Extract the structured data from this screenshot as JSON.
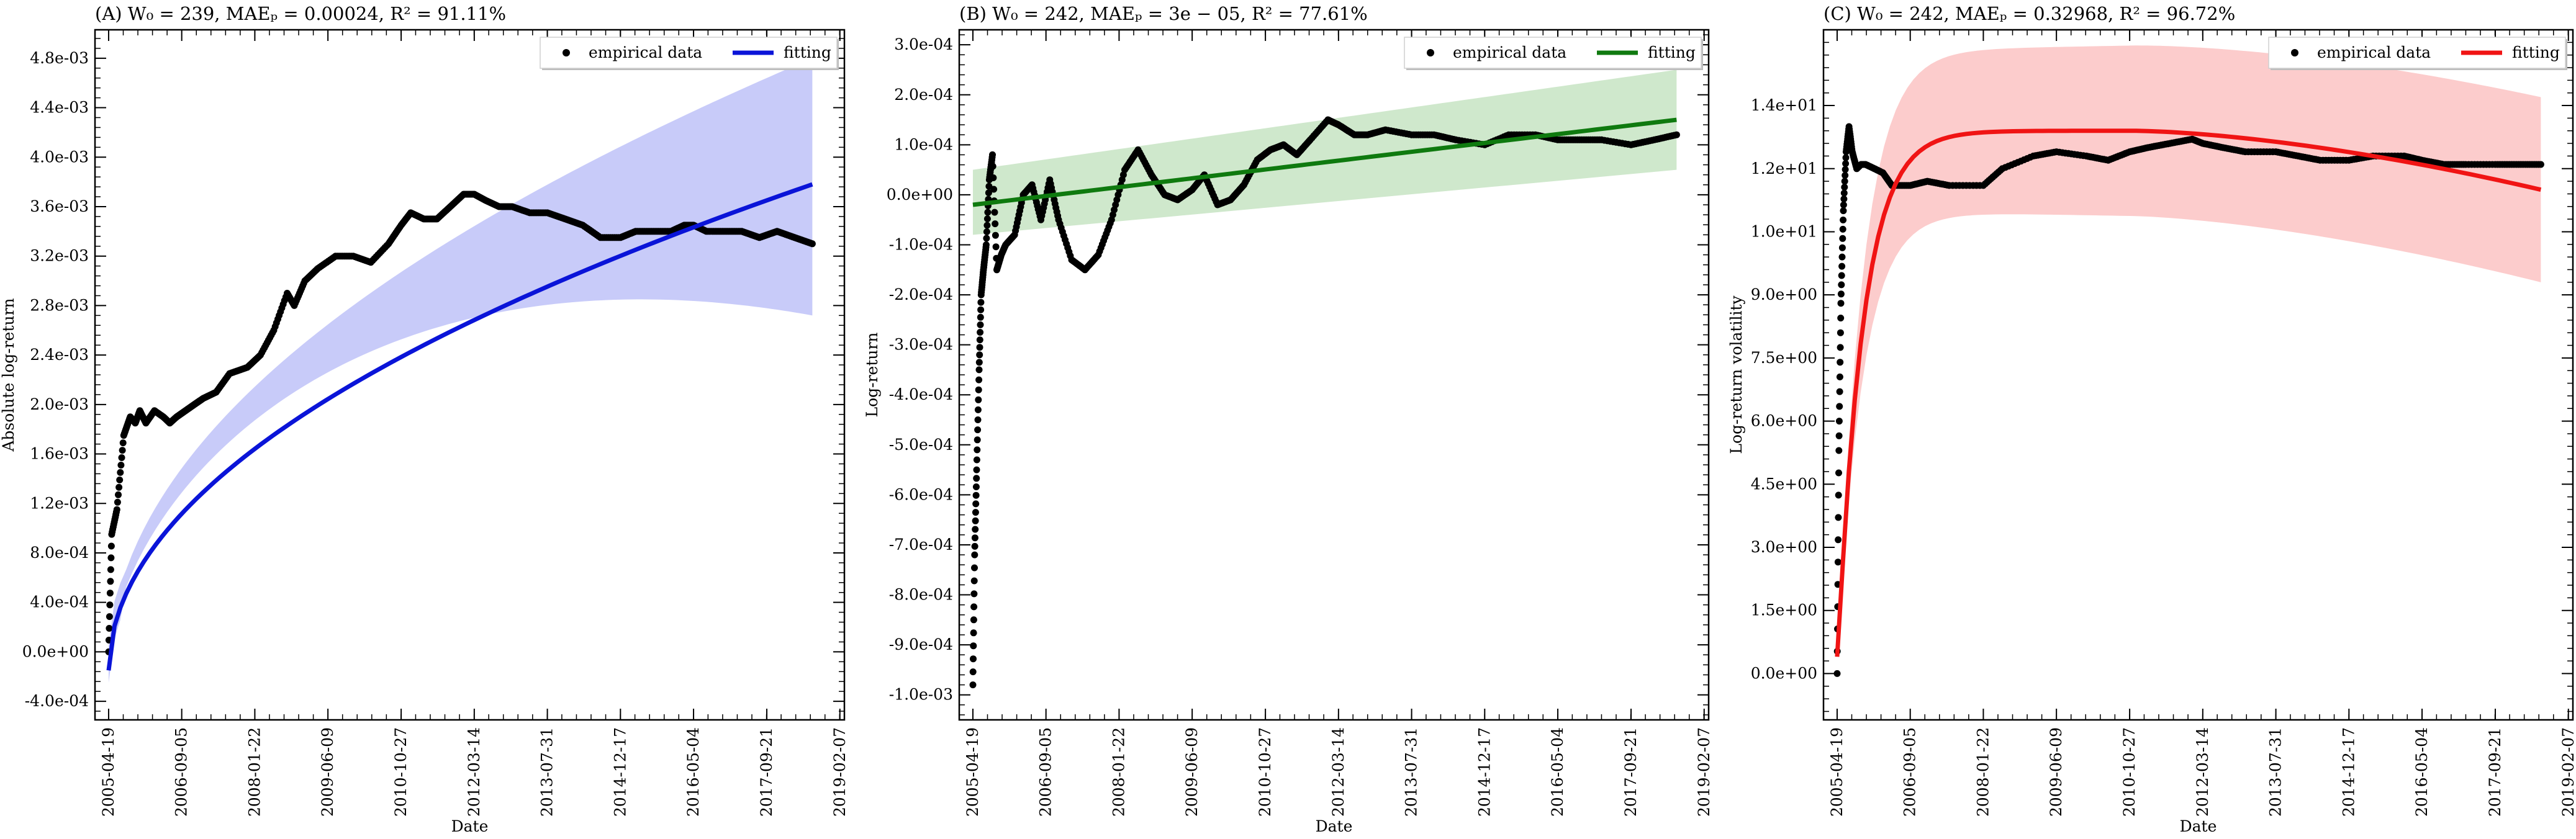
{
  "chart_data": [
    {
      "panel": "A",
      "type": "scatter",
      "title": "(A) W₀ = 239, MAEₚ = 0.00024, R² = 91.11%",
      "xlabel": "Date",
      "ylabel": "Absolute log-return",
      "x_ticks": [
        "2005-04-19",
        "2006-09-05",
        "2008-01-22",
        "2009-06-09",
        "2010-10-27",
        "2012-03-14",
        "2013-07-31",
        "2014-12-17",
        "2016-05-04",
        "2017-09-21",
        "2019-02-07"
      ],
      "y_ticks": [
        "-4.0e-04",
        "0.0e+00",
        "4.0e-04",
        "8.0e-04",
        "1.2e-03",
        "1.6e-03",
        "2.0e-03",
        "2.4e-03",
        "2.8e-03",
        "3.2e-03",
        "3.6e-03",
        "4.0e-03",
        "4.4e-03",
        "4.8e-03"
      ],
      "y_tick_values": [
        -0.0004,
        0,
        0.0004,
        0.0008,
        0.0012,
        0.0016,
        0.002,
        0.0024,
        0.0028,
        0.0032,
        0.0036,
        0.004,
        0.0044,
        0.0048
      ],
      "xlim": [
        "2005-01-15",
        "2019-03-10"
      ],
      "ylim": [
        -0.00055,
        0.00503
      ],
      "legend": {
        "position": "top-right",
        "entries": [
          "empirical data",
          "fitting"
        ]
      },
      "colors": {
        "fit": "#0a14d8",
        "band": "#c8cbf9",
        "points": "#000000"
      },
      "empirical": {
        "x": [
          "2005-04-19",
          "2005-05-10",
          "2005-06-15",
          "2005-08-01",
          "2005-09-15",
          "2005-10-20",
          "2005-11-20",
          "2006-01-01",
          "2006-03-01",
          "2006-05-01",
          "2006-06-15",
          "2006-08-01",
          "2006-10-01",
          "2006-12-01",
          "2007-02-01",
          "2007-05-01",
          "2007-08-01",
          "2007-12-01",
          "2008-03-01",
          "2008-06-01",
          "2008-09-01",
          "2008-10-20",
          "2009-01-01",
          "2009-04-01",
          "2009-08-01",
          "2009-12-01",
          "2010-04-01",
          "2010-08-01",
          "2010-10-27",
          "2011-01-01",
          "2011-04-01",
          "2011-07-01",
          "2011-10-01",
          "2012-01-01",
          "2012-03-14",
          "2012-06-01",
          "2012-09-01",
          "2012-12-01",
          "2013-04-01",
          "2013-07-31",
          "2013-12-01",
          "2014-04-01",
          "2014-08-01",
          "2014-12-17",
          "2015-04-01",
          "2015-08-01",
          "2015-12-01",
          "2016-03-01",
          "2016-05-04",
          "2016-08-01",
          "2016-12-01",
          "2017-04-01",
          "2017-08-01",
          "2017-12-01",
          "2018-04-01",
          "2018-08-01"
        ],
        "y": [
          0.0,
          0.00095,
          0.00115,
          0.00175,
          0.0019,
          0.00185,
          0.00195,
          0.00185,
          0.00195,
          0.0019,
          0.00185,
          0.0019,
          0.00195,
          0.002,
          0.00205,
          0.0021,
          0.00225,
          0.0023,
          0.0024,
          0.0026,
          0.0029,
          0.0028,
          0.003,
          0.0031,
          0.0032,
          0.0032,
          0.00315,
          0.0033,
          0.00345,
          0.00355,
          0.0035,
          0.0035,
          0.0036,
          0.0037,
          0.0037,
          0.00365,
          0.0036,
          0.0036,
          0.00355,
          0.00355,
          0.0035,
          0.00345,
          0.00335,
          0.00335,
          0.0034,
          0.0034,
          0.0034,
          0.00345,
          0.00345,
          0.0034,
          0.0034,
          0.0034,
          0.00335,
          0.0034,
          0.00335,
          0.0033
        ]
      },
      "fit": {
        "x_start": "2005-04-19",
        "x_end": "2018-08-01",
        "y_start": -0.00015,
        "y_end": 0.00378,
        "band_low_end": 0.00272,
        "band_high_end": 0.0048
      }
    },
    {
      "panel": "B",
      "type": "scatter",
      "title": "(B) W₀ = 242, MAEₚ = 3e − 05, R² = 77.61%",
      "xlabel": "Date",
      "ylabel": "Log-return",
      "x_ticks": [
        "2005-04-19",
        "2006-09-05",
        "2008-01-22",
        "2009-06-09",
        "2010-10-27",
        "2012-03-14",
        "2013-07-31",
        "2014-12-17",
        "2016-05-04",
        "2017-09-21",
        "2019-02-07"
      ],
      "y_ticks": [
        "-1.0e-03",
        "-9.0e-04",
        "-8.0e-04",
        "-7.0e-04",
        "-6.0e-04",
        "-5.0e-04",
        "-4.0e-04",
        "-3.0e-04",
        "-2.0e-04",
        "-1.0e-04",
        "0.0e+00",
        "1.0e-04",
        "2.0e-04",
        "3.0e-04"
      ],
      "y_tick_values": [
        -0.001,
        -0.0009,
        -0.0008,
        -0.0007,
        -0.0006,
        -0.0005,
        -0.0004,
        -0.0003,
        -0.0002,
        -0.0001,
        0,
        0.0001,
        0.0002,
        0.0003
      ],
      "xlim": [
        "2005-01-15",
        "2019-03-10"
      ],
      "ylim": [
        -0.00105,
        0.00033
      ],
      "legend": {
        "position": "top-right",
        "entries": [
          "empirical data",
          "fitting"
        ]
      },
      "colors": {
        "fit": "#0f7a0f",
        "band": "#cfe8cc",
        "points": "#000000"
      },
      "empirical": {
        "x": [
          "2005-04-19",
          "2005-05-01",
          "2005-05-15",
          "2005-06-01",
          "2005-06-15",
          "2005-07-01",
          "2005-07-20",
          "2005-08-10",
          "2005-09-01",
          "2005-10-01",
          "2005-11-01",
          "2005-12-01",
          "2006-02-01",
          "2006-04-01",
          "2006-06-01",
          "2006-08-01",
          "2006-10-01",
          "2006-12-01",
          "2007-03-01",
          "2007-06-01",
          "2007-09-01",
          "2007-12-01",
          "2008-03-01",
          "2008-06-01",
          "2008-09-01",
          "2008-12-01",
          "2009-03-01",
          "2009-06-09",
          "2009-09-01",
          "2009-12-01",
          "2010-03-01",
          "2010-06-01",
          "2010-09-01",
          "2010-12-01",
          "2011-03-01",
          "2011-06-01",
          "2011-09-01",
          "2012-01-01",
          "2012-03-14",
          "2012-07-01",
          "2012-10-01",
          "2013-02-01",
          "2013-07-31",
          "2014-01-01",
          "2014-06-01",
          "2014-12-17",
          "2015-06-01",
          "2015-12-01",
          "2016-05-04",
          "2016-10-01",
          "2017-03-01",
          "2017-09-21",
          "2018-03-01",
          "2018-08-01"
        ],
        "y": [
          -0.00098,
          -0.00072,
          -0.00055,
          -0.00035,
          -0.0002,
          -0.00015,
          -0.0001,
          3e-05,
          8e-05,
          -0.00015,
          -0.00012,
          -0.0001,
          -8e-05,
          0.0,
          2e-05,
          -5e-05,
          3e-05,
          -5e-05,
          -0.00013,
          -0.00015,
          -0.00012,
          -5e-05,
          5e-05,
          9e-05,
          4e-05,
          0.0,
          -1e-05,
          1e-05,
          4e-05,
          -2e-05,
          -1e-05,
          2e-05,
          7e-05,
          9e-05,
          0.0001,
          8e-05,
          0.00011,
          0.00015,
          0.00014,
          0.00012,
          0.00012,
          0.00013,
          0.00012,
          0.00012,
          0.00011,
          0.0001,
          0.00012,
          0.00012,
          0.00011,
          0.00011,
          0.00011,
          0.0001,
          0.00011,
          0.00012
        ]
      },
      "fit": {
        "x_start": "2005-04-19",
        "x_end": "2018-08-01",
        "y_start": -2e-05,
        "y_end": 0.00015,
        "band_low_start": -8e-05,
        "band_high_start": 5e-05,
        "band_low_end": 5e-05,
        "band_high_end": 0.00025
      }
    },
    {
      "panel": "C",
      "type": "scatter",
      "title": "(C) W₀ = 242, MAEₚ = 0.32968, R² = 96.72%",
      "xlabel": "Date",
      "ylabel": "Log-return volatility",
      "x_ticks": [
        "2005-04-19",
        "2006-09-05",
        "2008-01-22",
        "2009-06-09",
        "2010-10-27",
        "2012-03-14",
        "2013-07-31",
        "2014-12-17",
        "2016-05-04",
        "2017-09-21",
        "2019-02-07"
      ],
      "y_ticks": [
        "0.0e+00",
        "1.5e+00",
        "3.0e+00",
        "4.5e+00",
        "6.0e+00",
        "7.5e+00",
        "9.0e+00",
        "1.0e+01",
        "1.2e+01",
        "1.4e+01"
      ],
      "y_tick_values": [
        0,
        1.5,
        3.0,
        4.5,
        6.0,
        7.5,
        9.0,
        10.5,
        12.0,
        13.5
      ],
      "xlim": [
        "2005-01-15",
        "2019-03-10"
      ],
      "ylim": [
        -1.1,
        15.3
      ],
      "legend": {
        "position": "top-right",
        "entries": [
          "empirical data",
          "fitting"
        ]
      },
      "colors": {
        "fit": "#f01414",
        "band": "#fccccc",
        "points": "#000000"
      },
      "empirical": {
        "x": [
          "2005-04-19",
          "2005-05-01",
          "2005-05-15",
          "2005-06-01",
          "2005-06-20",
          "2005-07-10",
          "2005-08-01",
          "2005-09-01",
          "2005-10-01",
          "2005-11-01",
          "2006-01-01",
          "2006-03-01",
          "2006-05-01",
          "2006-09-05",
          "2007-01-01",
          "2007-06-01",
          "2008-01-22",
          "2008-06-01",
          "2009-01-01",
          "2009-06-09",
          "2010-01-01",
          "2010-06-01",
          "2010-10-27",
          "2011-03-01",
          "2011-08-01",
          "2012-01-01",
          "2012-03-14",
          "2012-08-01",
          "2013-01-01",
          "2013-07-31",
          "2014-01-01",
          "2014-06-01",
          "2014-12-17",
          "2015-06-01",
          "2016-01-01",
          "2016-05-04",
          "2016-10-01",
          "2017-03-01",
          "2017-09-21",
          "2018-03-01",
          "2018-08-01"
        ],
        "y": [
          0.0,
          5.3,
          8.8,
          11.0,
          12.4,
          13.0,
          12.4,
          12.0,
          12.1,
          12.1,
          12.0,
          11.9,
          11.6,
          11.6,
          11.7,
          11.6,
          11.6,
          12.0,
          12.3,
          12.4,
          12.3,
          12.2,
          12.4,
          12.5,
          12.6,
          12.7,
          12.6,
          12.5,
          12.4,
          12.4,
          12.3,
          12.2,
          12.2,
          12.3,
          12.3,
          12.2,
          12.1,
          12.1,
          12.1,
          12.1,
          12.1
        ]
      },
      "fit": {
        "x_start": "2005-04-19",
        "x_end": "2018-08-01",
        "y_peak": 12.9,
        "y_end": 11.5,
        "band_width_peak": 1.9,
        "band_width_end": 2.2
      }
    }
  ]
}
